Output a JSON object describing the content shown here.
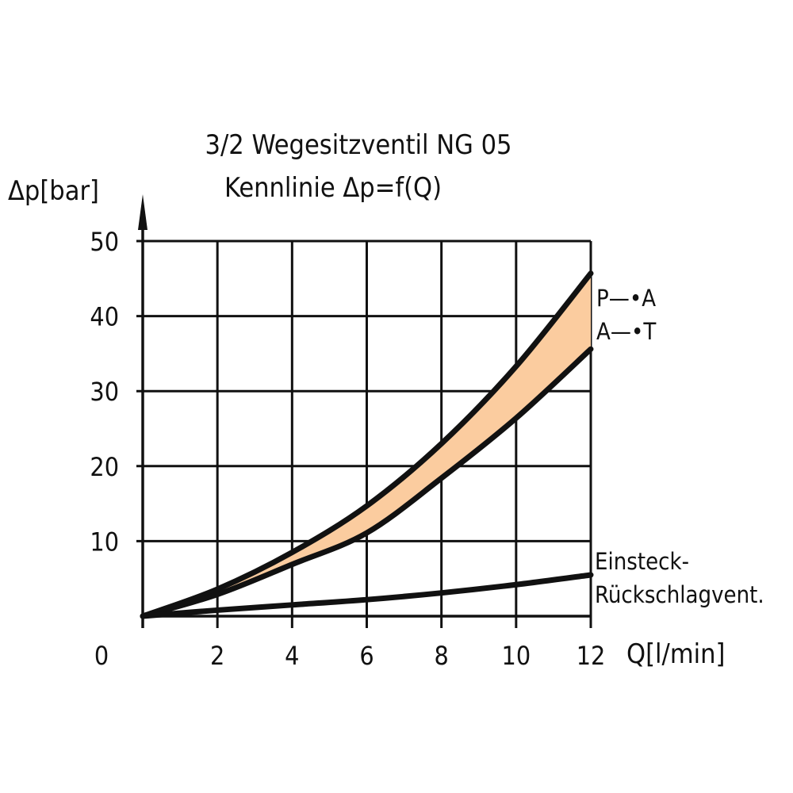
{
  "chart_data": {
    "type": "line",
    "title": "3/2 Wegesitzventil NG 05",
    "subtitle": "Kennlinie Δp=f(Q)",
    "xlabel": "Q[l/min]",
    "ylabel": "Δp[bar]",
    "xlim": [
      0,
      12
    ],
    "ylim": [
      0,
      50
    ],
    "x_ticks": [
      "0",
      "2",
      "4",
      "6",
      "8",
      "10",
      "12"
    ],
    "y_ticks": [
      "10",
      "20",
      "30",
      "40",
      "50"
    ],
    "grid": true,
    "band_fill_color": "#fbcc9f",
    "x": [
      0,
      2,
      4,
      6,
      8,
      10,
      12
    ],
    "series": [
      {
        "name": "P→A",
        "label": "P—•A",
        "values": [
          0,
          3.6,
          8.5,
          14.7,
          23.0,
          33.3,
          45.7
        ]
      },
      {
        "name": "A→T",
        "label": "A—•T",
        "values": [
          0,
          2.9,
          6.9,
          11.1,
          18.4,
          26.4,
          35.6
        ]
      },
      {
        "name": "Einsteck-Rückschlagvent.",
        "label_line1": "Einsteck-",
        "label_line2": "Rückschlagvent.",
        "values": [
          0,
          0.8,
          1.5,
          2.2,
          3.1,
          4.2,
          5.5
        ]
      }
    ]
  }
}
